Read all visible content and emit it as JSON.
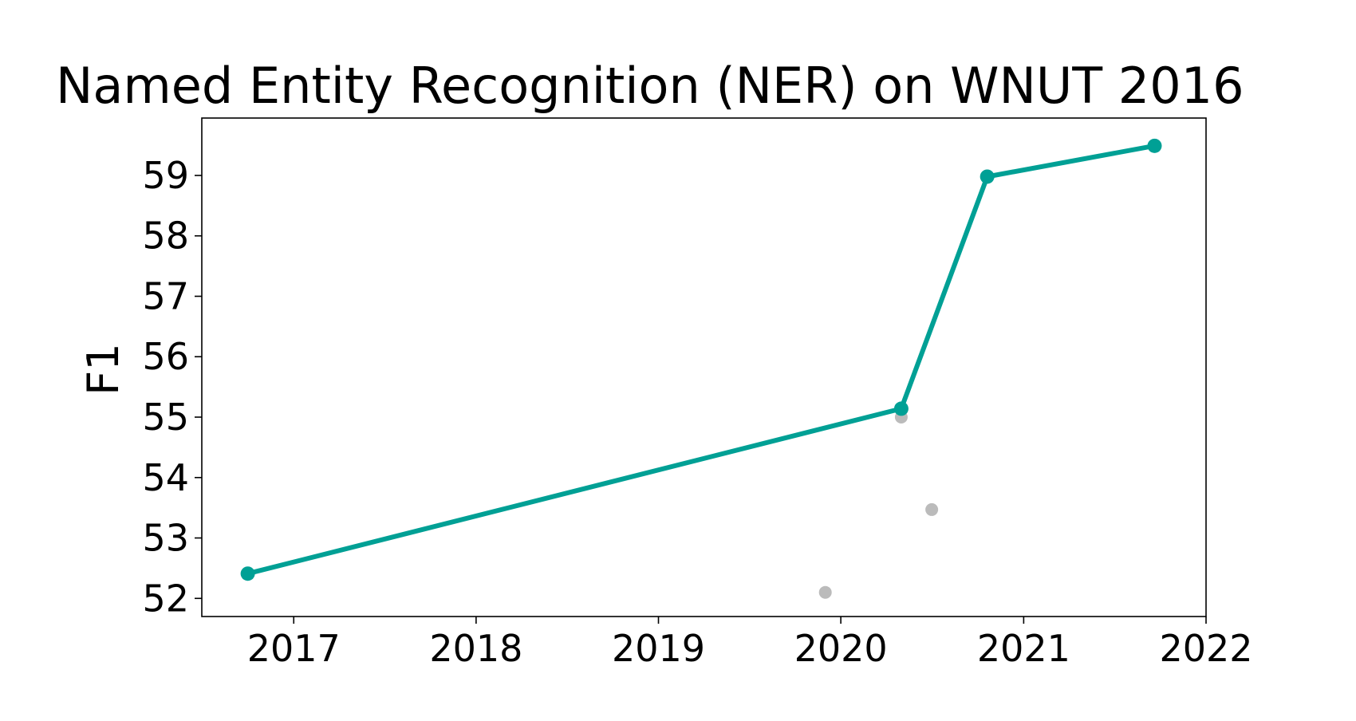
{
  "chart_data": {
    "type": "line",
    "title": "Named Entity Recognition (NER) on WNUT 2016",
    "xlabel": "",
    "ylabel": "F1",
    "x_axis_type": "date",
    "xlim": [
      "2016-07-01",
      "2022-01-01"
    ],
    "ylim": [
      51.7,
      59.95
    ],
    "x_ticks": [
      "2017",
      "2018",
      "2019",
      "2020",
      "2021",
      "2022"
    ],
    "y_ticks": [
      "52",
      "53",
      "54",
      "55",
      "56",
      "57",
      "58",
      "59"
    ],
    "grid": false,
    "legend": "none",
    "series": [
      {
        "role": "state-of-the-art",
        "color": "#00a095",
        "points": [
          {
            "x": "2016-10-01",
            "y": 52.41
          },
          {
            "x": "2020-05-01",
            "y": 55.14
          },
          {
            "x": "2020-10-20",
            "y": 58.98
          },
          {
            "x": "2021-09-20",
            "y": 59.49
          }
        ]
      },
      {
        "role": "other-results",
        "color": "#bbbbbb",
        "points": [
          {
            "x": "2019-12-01",
            "y": 52.1
          },
          {
            "x": "2020-05-01",
            "y": 55.0
          },
          {
            "x": "2020-07-01",
            "y": 53.47
          }
        ]
      }
    ]
  }
}
